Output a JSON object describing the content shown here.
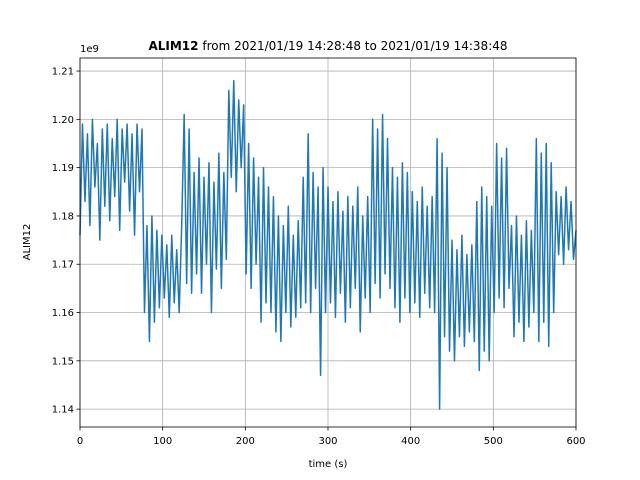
{
  "chart_data": {
    "type": "line",
    "title_bold": "ALIM12",
    "title": "from 2021/01/19 14:28:48 to 2021/01/19 14:38:48",
    "offset_label": "1e9",
    "x_label": "time (s)",
    "y_label": "ALIM12",
    "color": "#1f77b4",
    "grid": true,
    "xlim": [
      0,
      600
    ],
    "ylim": [
      1.1363,
      1.2127
    ],
    "xticks": [
      0,
      100,
      200,
      300,
      400,
      500,
      600
    ],
    "yticks": [
      1.14,
      1.15,
      1.16,
      1.17,
      1.18,
      1.19,
      {
        "value": 1.2,
        "label": "1.20"
      },
      1.21
    ],
    "x": [
      0,
      3,
      6,
      9,
      12,
      15,
      18,
      21,
      24,
      27,
      30,
      33,
      36,
      39,
      42,
      45,
      48,
      51,
      54,
      57,
      60,
      63,
      66,
      69,
      72,
      75,
      78,
      81,
      84,
      87,
      90,
      93,
      96,
      99,
      102,
      105,
      108,
      111,
      114,
      117,
      120,
      123,
      126,
      129,
      132,
      135,
      138,
      141,
      144,
      147,
      150,
      153,
      156,
      159,
      162,
      165,
      168,
      171,
      174,
      177,
      180,
      183,
      186,
      189,
      192,
      195,
      198,
      201,
      204,
      207,
      210,
      213,
      216,
      219,
      222,
      225,
      228,
      231,
      234,
      237,
      240,
      243,
      246,
      249,
      252,
      255,
      258,
      261,
      264,
      267,
      270,
      273,
      276,
      279,
      282,
      285,
      288,
      291,
      294,
      297,
      300,
      303,
      306,
      309,
      312,
      315,
      318,
      321,
      324,
      327,
      330,
      333,
      336,
      339,
      342,
      345,
      348,
      351,
      354,
      357,
      360,
      363,
      366,
      369,
      372,
      375,
      378,
      381,
      384,
      387,
      390,
      393,
      396,
      399,
      402,
      405,
      408,
      411,
      414,
      417,
      420,
      423,
      426,
      429,
      432,
      435,
      438,
      441,
      444,
      447,
      450,
      453,
      456,
      459,
      462,
      465,
      468,
      471,
      474,
      477,
      480,
      483,
      486,
      489,
      492,
      495,
      498,
      501,
      504,
      507,
      510,
      513,
      516,
      519,
      522,
      525,
      528,
      531,
      534,
      537,
      540,
      543,
      546,
      549,
      552,
      555,
      558,
      561,
      564,
      567,
      570,
      573,
      576,
      579,
      582,
      585,
      588,
      591,
      594,
      597,
      600
    ],
    "values": [
      1.176,
      1.199,
      1.183,
      1.197,
      1.178,
      1.2,
      1.186,
      1.195,
      1.175,
      1.198,
      1.182,
      1.199,
      1.179,
      1.196,
      1.184,
      1.2,
      1.177,
      1.198,
      1.187,
      1.199,
      1.181,
      1.197,
      1.176,
      1.199,
      1.185,
      1.198,
      1.16,
      1.178,
      1.154,
      1.18,
      1.158,
      1.177,
      1.161,
      1.176,
      1.163,
      1.174,
      1.159,
      1.176,
      1.162,
      1.173,
      1.16,
      1.178,
      1.201,
      1.166,
      1.198,
      1.164,
      1.189,
      1.168,
      1.192,
      1.164,
      1.188,
      1.17,
      1.191,
      1.16,
      1.187,
      1.169,
      1.193,
      1.165,
      1.189,
      1.171,
      1.206,
      1.188,
      1.208,
      1.185,
      1.204,
      1.19,
      1.203,
      1.168,
      1.195,
      1.165,
      1.192,
      1.17,
      1.188,
      1.158,
      1.19,
      1.162,
      1.186,
      1.16,
      1.184,
      1.156,
      1.18,
      1.154,
      1.178,
      1.16,
      1.182,
      1.157,
      1.176,
      1.159,
      1.179,
      1.161,
      1.188,
      1.162,
      1.197,
      1.16,
      1.189,
      1.165,
      1.186,
      1.147,
      1.19,
      1.16,
      1.186,
      1.162,
      1.183,
      1.159,
      1.185,
      1.164,
      1.181,
      1.158,
      1.184,
      1.161,
      1.182,
      1.165,
      1.186,
      1.156,
      1.18,
      1.163,
      1.184,
      1.16,
      1.2,
      1.166,
      1.198,
      1.163,
      1.201,
      1.168,
      1.196,
      1.165,
      1.19,
      1.161,
      1.188,
      1.158,
      1.191,
      1.163,
      1.189,
      1.16,
      1.185,
      1.162,
      1.183,
      1.159,
      1.186,
      1.164,
      1.182,
      1.161,
      1.184,
      1.16,
      1.196,
      1.14,
      1.193,
      1.155,
      1.19,
      1.152,
      1.175,
      1.15,
      1.173,
      1.155,
      1.176,
      1.153,
      1.172,
      1.156,
      1.174,
      1.154,
      1.183,
      1.148,
      1.186,
      1.152,
      1.184,
      1.15,
      1.182,
      1.16,
      1.195,
      1.163,
      1.192,
      1.161,
      1.194,
      1.165,
      1.178,
      1.155,
      1.18,
      1.158,
      1.176,
      1.154,
      1.179,
      1.157,
      1.177,
      1.16,
      1.196,
      1.154,
      1.193,
      1.158,
      1.195,
      1.153,
      1.191,
      1.16,
      1.185,
      1.172,
      1.184,
      1.17,
      1.186,
      1.173,
      1.183,
      1.171,
      1.177
    ]
  }
}
